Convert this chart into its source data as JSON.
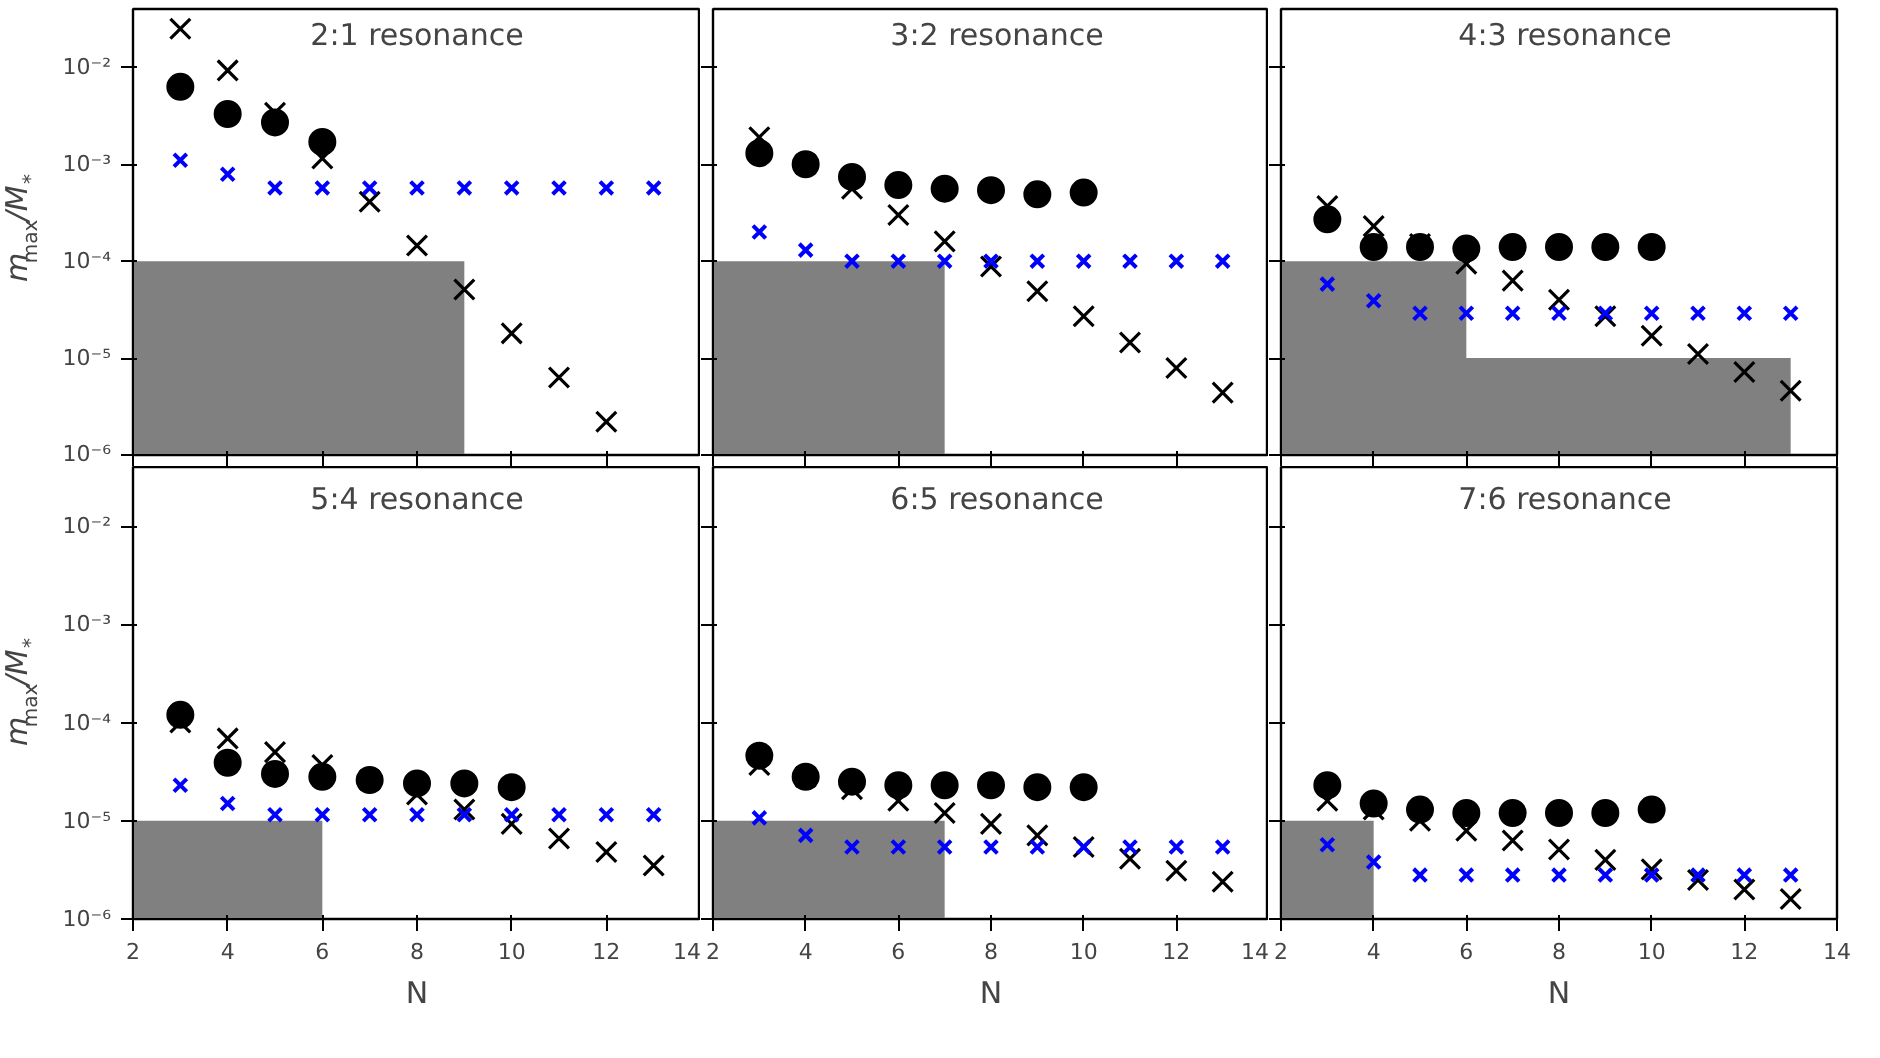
{
  "chart_data": [
    {
      "type": "scatter",
      "title": "2:1 resonance",
      "ylabel": "m$_{max}$/M$_{*}$",
      "tick_labels": "y",
      "xlim": [
        2,
        14
      ],
      "xticks": [
        2,
        4,
        6,
        8,
        10,
        12,
        14
      ],
      "ylim": [
        1e-06,
        0.04
      ],
      "log": "y",
      "grid": false,
      "yticks": [
        {
          "value": 1e-06,
          "label": "10⁻⁶"
        },
        {
          "value": 1e-05,
          "label": "10⁻⁵"
        },
        {
          "value": 0.0001,
          "label": "10⁻⁴"
        },
        {
          "value": 0.001,
          "label": "10⁻³"
        },
        {
          "value": 0.01,
          "label": "10⁻²"
        }
      ],
      "series": [
        {
          "type": "area",
          "color": "#808080",
          "x": [
            2,
            9
          ],
          "values": [
            0.0001,
            0.0001
          ]
        },
        {
          "color": "#000000",
          "marker": "circle",
          "x": [
            3,
            4,
            5,
            6
          ],
          "values": [
            0.0063,
            0.0033,
            0.0027,
            0.0017
          ]
        },
        {
          "color": "#000000",
          "marker": "cross",
          "x": [
            3,
            4,
            5,
            6,
            7,
            8,
            9,
            10,
            11,
            12
          ],
          "values": [
            0.025,
            0.0093,
            0.0034,
            0.00115,
            0.00041,
            0.000145,
            5.1e-05,
            1.8e-05,
            6.3e-06,
            2.2e-06
          ]
        },
        {
          "color": "#0000ff",
          "marker": "cross",
          "x": [
            3,
            4,
            5,
            6,
            7,
            8,
            9,
            10,
            11,
            12,
            13
          ],
          "values": [
            0.0011,
            0.00079,
            0.00057,
            0.00057,
            0.00057,
            0.00057,
            0.00057,
            0.00057,
            0.00057,
            0.00057,
            0.00057
          ]
        }
      ]
    },
    {
      "type": "scatter",
      "title": "3:2 resonance",
      "tick_labels": false,
      "xlim": [
        2,
        14
      ],
      "xticks": [
        2,
        4,
        6,
        8,
        10,
        12,
        14
      ],
      "ylim": [
        1e-06,
        0.04
      ],
      "log": "y",
      "grid": false,
      "yticks": [
        {
          "value": 1e-06,
          "label": null
        },
        {
          "value": 1e-05,
          "label": null
        },
        {
          "value": 0.0001,
          "label": null
        },
        {
          "value": 0.001,
          "label": null
        },
        {
          "value": 0.01,
          "label": null
        }
      ],
      "series": [
        {
          "type": "area",
          "color": "#808080",
          "x": [
            2,
            7
          ],
          "values": [
            0.0001,
            0.0001
          ]
        },
        {
          "color": "#000000",
          "marker": "circle",
          "x": [
            3,
            4,
            5,
            6,
            7,
            8,
            9,
            10
          ],
          "values": [
            0.0013,
            0.001,
            0.00074,
            0.00061,
            0.00056,
            0.00054,
            0.00049,
            0.00051
          ]
        },
        {
          "color": "#000000",
          "marker": "cross",
          "x": [
            3,
            4,
            5,
            6,
            7,
            8,
            9,
            10,
            11,
            12,
            13
          ],
          "values": [
            0.0019,
            0.001,
            0.00056,
            0.0003,
            0.00016,
            8.8e-05,
            4.9e-05,
            2.7e-05,
            1.45e-05,
            7.9e-06,
            4.4e-06
          ]
        },
        {
          "color": "#0000ff",
          "marker": "cross",
          "x": [
            3,
            4,
            5,
            6,
            7,
            8,
            9,
            10,
            11,
            12,
            13
          ],
          "values": [
            0.0002,
            0.00013,
            0.0001,
            0.0001,
            0.0001,
            0.0001,
            0.0001,
            0.0001,
            0.0001,
            0.0001,
            0.0001
          ]
        }
      ]
    },
    {
      "type": "scatter",
      "title": "4:3 resonance",
      "tick_labels": false,
      "xlim": [
        2,
        14
      ],
      "xticks": [
        2,
        4,
        6,
        8,
        10,
        12,
        14
      ],
      "ylim": [
        1e-06,
        0.04
      ],
      "log": "y",
      "grid": false,
      "yticks": [
        {
          "value": 1e-06,
          "label": null
        },
        {
          "value": 1e-05,
          "label": null
        },
        {
          "value": 0.0001,
          "label": null
        },
        {
          "value": 0.001,
          "label": null
        },
        {
          "value": 0.01,
          "label": null
        }
      ],
      "series": [
        {
          "type": "area",
          "color": "#808080",
          "x": [
            2,
            6
          ],
          "values": [
            0.0001,
            0.0001
          ]
        },
        {
          "type": "area",
          "color": "#808080",
          "x": [
            2,
            13
          ],
          "values": [
            1e-05,
            1e-05
          ]
        },
        {
          "color": "#000000",
          "marker": "circle",
          "x": [
            3,
            4,
            5,
            6,
            7,
            8,
            9,
            10
          ],
          "values": [
            0.00027,
            0.00014,
            0.00014,
            0.000135,
            0.00014,
            0.00014,
            0.00014,
            0.00014
          ]
        },
        {
          "color": "#000000",
          "marker": "cross",
          "x": [
            3,
            4,
            5,
            6,
            7,
            8,
            9,
            10,
            11,
            12,
            13
          ],
          "values": [
            0.00037,
            0.00023,
            0.00015,
            9.4e-05,
            6.3e-05,
            4e-05,
            2.7e-05,
            1.7e-05,
            1.1e-05,
            7.2e-06,
            4.6e-06
          ]
        },
        {
          "color": "#0000ff",
          "marker": "cross",
          "x": [
            3,
            4,
            5,
            6,
            7,
            8,
            9,
            10,
            11,
            12,
            13
          ],
          "values": [
            5.8e-05,
            3.9e-05,
            2.9e-05,
            2.9e-05,
            2.9e-05,
            2.9e-05,
            2.9e-05,
            2.9e-05,
            2.9e-05,
            2.9e-05,
            2.9e-05
          ]
        }
      ]
    },
    {
      "type": "scatter",
      "title": "5:4 resonance",
      "xlabel": "N",
      "ylabel": "m$_{max}$/M$_{*}$",
      "xlim": [
        2,
        14
      ],
      "xticks": [
        2,
        4,
        6,
        8,
        10,
        12,
        14
      ],
      "ylim": [
        1e-06,
        0.04
      ],
      "log": "y",
      "grid": false,
      "yticks": [
        {
          "value": 1e-06,
          "label": "10⁻⁶"
        },
        {
          "value": 1e-05,
          "label": "10⁻⁵"
        },
        {
          "value": 0.0001,
          "label": "10⁻⁴"
        },
        {
          "value": 0.001,
          "label": "10⁻³"
        },
        {
          "value": 0.01,
          "label": "10⁻²"
        }
      ],
      "series": [
        {
          "type": "area",
          "color": "#808080",
          "x": [
            2,
            6
          ],
          "values": [
            1e-05,
            1e-05
          ]
        },
        {
          "color": "#000000",
          "marker": "circle",
          "x": [
            3,
            4,
            5,
            6,
            7,
            8,
            9,
            10
          ],
          "values": [
            0.00012,
            3.9e-05,
            3e-05,
            2.8e-05,
            2.6e-05,
            2.4e-05,
            2.4e-05,
            2.2e-05
          ]
        },
        {
          "color": "#000000",
          "marker": "cross",
          "x": [
            3,
            4,
            5,
            6,
            7,
            8,
            9,
            10,
            11,
            12,
            13
          ],
          "values": [
            0.0001,
            6.9e-05,
            5e-05,
            3.7e-05,
            2.6e-05,
            1.85e-05,
            1.3e-05,
            9.3e-06,
            6.6e-06,
            4.8e-06,
            3.5e-06
          ]
        },
        {
          "color": "#0000ff",
          "marker": "cross",
          "x": [
            3,
            4,
            5,
            6,
            7,
            8,
            9,
            10,
            11,
            12,
            13
          ],
          "values": [
            2.3e-05,
            1.5e-05,
            1.15e-05,
            1.15e-05,
            1.15e-05,
            1.15e-05,
            1.15e-05,
            1.15e-05,
            1.15e-05,
            1.15e-05,
            1.15e-05
          ]
        }
      ]
    },
    {
      "type": "scatter",
      "title": "6:5 resonance",
      "xlabel": "N",
      "tick_labels": "x",
      "xlim": [
        2,
        14
      ],
      "xticks": [
        2,
        4,
        6,
        8,
        10,
        12,
        14
      ],
      "ylim": [
        1e-06,
        0.04
      ],
      "log": "y",
      "grid": false,
      "yticks": [
        {
          "value": 1e-06,
          "label": null
        },
        {
          "value": 1e-05,
          "label": null
        },
        {
          "value": 0.0001,
          "label": null
        },
        {
          "value": 0.001,
          "label": null
        },
        {
          "value": 0.01,
          "label": null
        }
      ],
      "series": [
        {
          "type": "area",
          "color": "#808080",
          "x": [
            2,
            7
          ],
          "values": [
            1e-05,
            1e-05
          ]
        },
        {
          "color": "#000000",
          "marker": "circle",
          "x": [
            3,
            4,
            5,
            6,
            7,
            8,
            9,
            10
          ],
          "values": [
            4.6e-05,
            2.8e-05,
            2.5e-05,
            2.3e-05,
            2.3e-05,
            2.3e-05,
            2.2e-05,
            2.2e-05
          ]
        },
        {
          "color": "#000000",
          "marker": "cross",
          "x": [
            3,
            4,
            5,
            6,
            7,
            8,
            9,
            10,
            11,
            12,
            13
          ],
          "values": [
            3.7e-05,
            2.8e-05,
            2.1e-05,
            1.6e-05,
            1.2e-05,
            9.3e-06,
            7.1e-06,
            5.4e-06,
            4.1e-06,
            3.1e-06,
            2.4e-06
          ]
        },
        {
          "color": "#0000ff",
          "marker": "cross",
          "x": [
            3,
            4,
            5,
            6,
            7,
            8,
            9,
            10,
            11,
            12,
            13
          ],
          "values": [
            1.07e-05,
            7.1e-06,
            5.4e-06,
            5.4e-06,
            5.4e-06,
            5.4e-06,
            5.4e-06,
            5.4e-06,
            5.4e-06,
            5.4e-06,
            5.4e-06
          ]
        }
      ]
    },
    {
      "type": "scatter",
      "title": "7:6 resonance",
      "xlabel": "N",
      "tick_labels": "x",
      "xlim": [
        2,
        14
      ],
      "xticks": [
        2,
        4,
        6,
        8,
        10,
        12,
        14
      ],
      "ylim": [
        1e-06,
        0.04
      ],
      "log": "y",
      "grid": false,
      "yticks": [
        {
          "value": 1e-06,
          "label": null
        },
        {
          "value": 1e-05,
          "label": null
        },
        {
          "value": 0.0001,
          "label": null
        },
        {
          "value": 0.001,
          "label": null
        },
        {
          "value": 0.01,
          "label": null
        }
      ],
      "series": [
        {
          "type": "area",
          "color": "#808080",
          "x": [
            2,
            4
          ],
          "values": [
            1e-05,
            1e-05
          ]
        },
        {
          "color": "#000000",
          "marker": "circle",
          "x": [
            3,
            4,
            5,
            6,
            7,
            8,
            9,
            10
          ],
          "values": [
            2.3e-05,
            1.5e-05,
            1.3e-05,
            1.2e-05,
            1.2e-05,
            1.2e-05,
            1.2e-05,
            1.3e-05
          ]
        },
        {
          "color": "#000000",
          "marker": "cross",
          "x": [
            3,
            4,
            5,
            6,
            7,
            8,
            9,
            10,
            11,
            12,
            13
          ],
          "values": [
            1.6e-05,
            1.3e-05,
            1e-05,
            7.9e-06,
            6.3e-06,
            5.1e-06,
            4e-06,
            3.2e-06,
            2.5e-06,
            2e-06,
            1.6e-06
          ]
        },
        {
          "color": "#0000ff",
          "marker": "cross",
          "x": [
            3,
            4,
            5,
            6,
            7,
            8,
            9,
            10,
            11,
            12,
            13
          ],
          "values": [
            5.7e-06,
            3.8e-06,
            2.8e-06,
            2.8e-06,
            2.8e-06,
            2.8e-06,
            2.8e-06,
            2.8e-06,
            2.8e-06,
            2.8e-06,
            2.8e-06
          ]
        }
      ]
    }
  ]
}
